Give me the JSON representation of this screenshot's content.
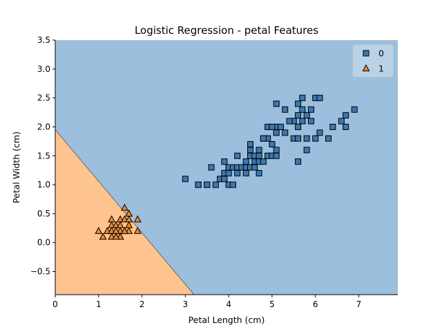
{
  "chart_data": {
    "type": "scatter",
    "title": "Logistic Regression - petal Features",
    "xlabel": "Petal Length (cm)",
    "ylabel": "Petal Width (cm)",
    "xlim": [
      0,
      7.9
    ],
    "ylim": [
      -0.9,
      3.5
    ],
    "xticks": [
      0,
      1,
      2,
      3,
      4,
      5,
      6,
      7
    ],
    "yticks": [
      -0.5,
      0.0,
      0.5,
      1.0,
      1.5,
      2.0,
      2.5,
      3.0,
      3.5
    ],
    "legend_position": "top-right",
    "grid": false,
    "decision_regions": [
      {
        "class": "0",
        "color": "#9bbfdc",
        "side": "upper-right"
      },
      {
        "class": "1",
        "color": "#fdc48f",
        "side": "lower-left"
      }
    ],
    "decision_boundary": [
      [
        0,
        1.95
      ],
      [
        3.2,
        -0.9
      ]
    ],
    "series": [
      {
        "name": "0",
        "marker": "square",
        "color": "#3a78b0",
        "points": [
          [
            3.0,
            1.1
          ],
          [
            3.3,
            1.0
          ],
          [
            3.3,
            1.0
          ],
          [
            3.5,
            1.0
          ],
          [
            3.5,
            1.0
          ],
          [
            3.6,
            1.3
          ],
          [
            3.7,
            1.0
          ],
          [
            3.8,
            1.1
          ],
          [
            3.9,
            1.1
          ],
          [
            3.9,
            1.4
          ],
          [
            3.9,
            1.2
          ],
          [
            4.0,
            1.0
          ],
          [
            4.0,
            1.3
          ],
          [
            4.0,
            1.2
          ],
          [
            4.0,
            1.3
          ],
          [
            4.1,
            1.0
          ],
          [
            4.1,
            1.3
          ],
          [
            4.2,
            1.3
          ],
          [
            4.2,
            1.5
          ],
          [
            4.2,
            1.2
          ],
          [
            4.3,
            1.3
          ],
          [
            4.4,
            1.3
          ],
          [
            4.4,
            1.4
          ],
          [
            4.4,
            1.2
          ],
          [
            4.5,
            1.5
          ],
          [
            4.5,
            1.3
          ],
          [
            4.5,
            1.7
          ],
          [
            4.5,
            1.6
          ],
          [
            4.6,
            1.3
          ],
          [
            4.6,
            1.4
          ],
          [
            4.6,
            1.5
          ],
          [
            4.7,
            1.4
          ],
          [
            4.7,
            1.6
          ],
          [
            4.7,
            1.2
          ],
          [
            4.7,
            1.5
          ],
          [
            4.8,
            1.8
          ],
          [
            4.8,
            1.4
          ],
          [
            4.9,
            1.5
          ],
          [
            4.9,
            1.8
          ],
          [
            4.9,
            2.0
          ],
          [
            5.0,
            1.7
          ],
          [
            5.0,
            1.5
          ],
          [
            5.0,
            2.0
          ],
          [
            5.1,
            1.6
          ],
          [
            5.1,
            1.9
          ],
          [
            5.1,
            2.0
          ],
          [
            5.1,
            2.4
          ],
          [
            5.1,
            1.5
          ],
          [
            5.3,
            1.9
          ],
          [
            5.3,
            2.3
          ],
          [
            5.5,
            1.8
          ],
          [
            5.5,
            2.1
          ],
          [
            5.6,
            1.8
          ],
          [
            5.6,
            2.2
          ],
          [
            5.6,
            1.4
          ],
          [
            5.6,
            2.4
          ],
          [
            5.7,
            2.1
          ],
          [
            5.7,
            2.3
          ],
          [
            5.7,
            2.5
          ],
          [
            5.8,
            1.8
          ],
          [
            5.8,
            2.2
          ],
          [
            5.9,
            2.1
          ],
          [
            5.8,
            1.6
          ],
          [
            6.0,
            2.5
          ],
          [
            6.0,
            1.8
          ],
          [
            6.1,
            1.9
          ],
          [
            6.1,
            2.5
          ],
          [
            6.3,
            1.8
          ],
          [
            6.4,
            2.0
          ],
          [
            6.6,
            2.1
          ],
          [
            6.7,
            2.0
          ],
          [
            6.7,
            2.2
          ],
          [
            6.9,
            2.3
          ],
          [
            5.6,
            2.0
          ],
          [
            5.9,
            2.3
          ],
          [
            4.8,
            1.8
          ],
          [
            5.0,
            2.0
          ],
          [
            5.4,
            2.1
          ],
          [
            5.2,
            2.0
          ]
        ]
      },
      {
        "name": "1",
        "marker": "triangle",
        "color": "#f0882a",
        "points": [
          [
            1.0,
            0.2
          ],
          [
            1.1,
            0.1
          ],
          [
            1.2,
            0.2
          ],
          [
            1.3,
            0.2
          ],
          [
            1.3,
            0.3
          ],
          [
            1.3,
            0.4
          ],
          [
            1.4,
            0.2
          ],
          [
            1.4,
            0.1
          ],
          [
            1.4,
            0.3
          ],
          [
            1.5,
            0.2
          ],
          [
            1.5,
            0.4
          ],
          [
            1.5,
            0.1
          ],
          [
            1.5,
            0.3
          ],
          [
            1.6,
            0.2
          ],
          [
            1.6,
            0.4
          ],
          [
            1.6,
            0.6
          ],
          [
            1.7,
            0.2
          ],
          [
            1.7,
            0.4
          ],
          [
            1.7,
            0.5
          ],
          [
            1.7,
            0.3
          ],
          [
            1.9,
            0.2
          ],
          [
            1.9,
            0.4
          ],
          [
            1.6,
            0.2
          ],
          [
            1.4,
            0.2
          ],
          [
            1.3,
            0.1
          ],
          [
            1.5,
            0.1
          ],
          [
            1.4,
            0.1
          ]
        ]
      }
    ]
  }
}
